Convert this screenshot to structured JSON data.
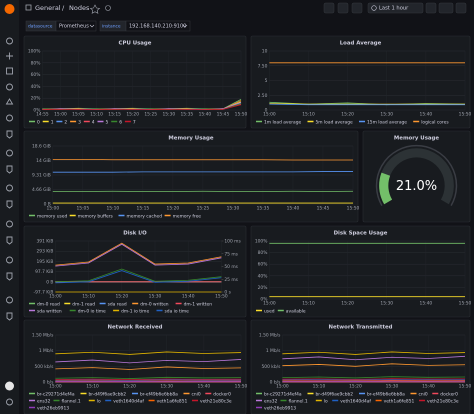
{
  "header": {
    "parent": "General",
    "separator": "/",
    "title": "Nodes",
    "time_range": "Last 1 hour"
  },
  "variables": [
    {
      "label": "datasource",
      "value": "Prometheus"
    },
    {
      "label": "instance",
      "value": "192.168.140.210:9100"
    }
  ],
  "chart_data": [
    {
      "type": "line",
      "title": "CPU Usage",
      "x": [
        "14:55",
        "15:00",
        "15:05",
        "15:10",
        "15:15",
        "15:20",
        "15:25",
        "15:30",
        "15:35",
        "15:40",
        "15:45",
        "15:50"
      ],
      "ylim": [
        0,
        100
      ],
      "yticks": [
        {
          "value": 0,
          "label": "0%"
        },
        {
          "value": 20,
          "label": "20%"
        },
        {
          "value": 40,
          "label": "40%"
        },
        {
          "value": 60,
          "label": "60%"
        },
        {
          "value": 80,
          "label": "80%"
        },
        {
          "value": 100,
          "label": "100%"
        }
      ],
      "series": [
        {
          "name": "0",
          "color": "#73bf69",
          "values": [
            2,
            2,
            3,
            2,
            2,
            3,
            2,
            2,
            3,
            2,
            2,
            18
          ]
        },
        {
          "name": "1",
          "color": "#fade2a",
          "values": [
            1,
            2,
            2,
            1,
            2,
            2,
            1,
            2,
            2,
            1,
            2,
            14
          ]
        },
        {
          "name": "2",
          "color": "#5794f2",
          "values": [
            2,
            1,
            2,
            2,
            1,
            2,
            2,
            1,
            2,
            2,
            1,
            12
          ]
        },
        {
          "name": "3",
          "color": "#ff9830",
          "values": [
            1,
            1,
            2,
            1,
            1,
            2,
            1,
            1,
            2,
            1,
            1,
            16
          ]
        },
        {
          "name": "4",
          "color": "#f2495c",
          "values": [
            2,
            2,
            1,
            2,
            2,
            1,
            2,
            2,
            1,
            2,
            2,
            10
          ]
        },
        {
          "name": "5",
          "color": "#b877d9",
          "values": [
            1,
            2,
            1,
            1,
            2,
            1,
            1,
            2,
            1,
            1,
            2,
            13
          ]
        },
        {
          "name": "6",
          "color": "#37872d",
          "values": [
            2,
            1,
            1,
            2,
            1,
            1,
            2,
            1,
            1,
            2,
            1,
            11
          ]
        },
        {
          "name": "7",
          "color": "#c4162a",
          "values": [
            1,
            1,
            1,
            1,
            1,
            1,
            1,
            1,
            1,
            1,
            1,
            9
          ]
        }
      ]
    },
    {
      "type": "line",
      "title": "Load Average",
      "x": [
        "15:00",
        "15:10",
        "15:20",
        "15:30",
        "15:40",
        "15:50"
      ],
      "ylim": [
        0,
        10
      ],
      "yticks": [
        0,
        {
          "value": 2.5,
          "label": "2.50"
        },
        5,
        {
          "value": 7.5,
          "label": "7.50"
        },
        10
      ],
      "series": [
        {
          "name": "1m load average",
          "color": "#73bf69",
          "values": [
            1.3,
            1.0,
            1.2,
            0.9,
            1.1,
            1.0
          ]
        },
        {
          "name": "5m load average",
          "color": "#fade2a",
          "values": [
            1.1,
            1.0,
            1.0,
            1.0,
            1.0,
            1.0
          ]
        },
        {
          "name": "15m load average",
          "color": "#5794f2",
          "values": [
            1.0,
            0.9,
            0.9,
            0.9,
            0.9,
            0.9
          ]
        },
        {
          "name": "logical cores",
          "color": "#ff9830",
          "values": [
            8,
            8,
            8,
            8,
            8,
            8
          ]
        }
      ]
    },
    {
      "type": "line",
      "title": "Memory Usage",
      "x": [
        "15:00",
        "15:05",
        "15:10",
        "15:15",
        "15:20",
        "15:25",
        "15:30",
        "15:35",
        "15:40",
        "15:45",
        "15:50"
      ],
      "ylim": [
        0,
        18.6
      ],
      "yticks": [
        {
          "value": 0,
          "label": "0 B"
        },
        {
          "value": 4.66,
          "label": "4.66 GiB"
        },
        {
          "value": 9.31,
          "label": "9.31 GiB"
        },
        {
          "value": 14,
          "label": "14 GiB"
        },
        {
          "value": 18.6,
          "label": "18.6 GiB"
        }
      ],
      "series": [
        {
          "name": "memory used",
          "color": "#73bf69",
          "values": [
            4.0,
            4.0,
            4.1,
            4.0,
            4.0,
            4.1,
            4.0,
            4.0,
            4.1,
            4.0,
            4.1
          ]
        },
        {
          "name": "memory buffers",
          "color": "#fade2a",
          "values": [
            0.3,
            0.3,
            0.3,
            0.3,
            0.3,
            0.3,
            0.3,
            0.3,
            0.3,
            0.3,
            0.3
          ]
        },
        {
          "name": "memory cached",
          "color": "#5794f2",
          "values": [
            10.2,
            10.2,
            10.2,
            10.3,
            10.3,
            10.3,
            10.3,
            10.3,
            10.3,
            10.4,
            10.4
          ]
        },
        {
          "name": "memory free",
          "color": "#ff9830",
          "values": [
            14.3,
            14.3,
            14.2,
            14.2,
            14.2,
            14.2,
            14.2,
            14.2,
            14.1,
            14.1,
            14.1
          ]
        }
      ]
    },
    {
      "type": "gauge",
      "title": "Memory Usage",
      "ylim": [
        0,
        100
      ],
      "color": "#73bf69",
      "values": [
        21.0
      ],
      "value_labels": [
        "21.0%"
      ]
    },
    {
      "type": "line",
      "title": "Disk I/O",
      "x": [
        "15:00",
        "15:10",
        "15:20",
        "15:30",
        "15:40",
        "15:50"
      ],
      "ylim": [
        -97.7,
        391
      ],
      "yticks": [
        {
          "value": -97.7,
          "label": "-97.7 KiB"
        },
        {
          "value": 0,
          "label": "0 B"
        },
        {
          "value": 97.7,
          "label": "97.7 KiB"
        },
        {
          "value": 195,
          "label": "195 KiB"
        },
        {
          "value": 293,
          "label": "293 KiB"
        },
        {
          "value": 391,
          "label": "391 KiB"
        }
      ],
      "y2lim": [
        0,
        100
      ],
      "y2ticks": [
        {
          "value": 0,
          "label": "0 s"
        },
        {
          "value": 25,
          "label": "25 ms"
        },
        {
          "value": 50,
          "label": "50 ms"
        },
        {
          "value": 75,
          "label": "75 ms"
        },
        {
          "value": 100,
          "label": "100 ms"
        }
      ],
      "series": [
        {
          "name": "dm-0 read",
          "color": "#73bf69",
          "values": [
            0,
            0,
            0,
            0,
            0,
            0
          ]
        },
        {
          "name": "dm-1 read",
          "color": "#fade2a",
          "values": [
            0,
            0,
            0,
            0,
            0,
            0
          ]
        },
        {
          "name": "sda read",
          "color": "#5794f2",
          "values": [
            0,
            0,
            0,
            0,
            0,
            0
          ]
        },
        {
          "name": "dm-0 written",
          "color": "#ff9830",
          "values": [
            160,
            190,
            370,
            170,
            180,
            240
          ]
        },
        {
          "name": "dm-1 written",
          "color": "#f2495c",
          "values": [
            0,
            0,
            0,
            0,
            0,
            0
          ]
        },
        {
          "name": "sda written",
          "color": "#b877d9",
          "values": [
            150,
            180,
            360,
            160,
            170,
            230
          ]
        },
        {
          "name": "dm-0 io time",
          "color": "#37872d",
          "values": [
            20,
            22,
            45,
            21,
            23,
            30
          ],
          "axis": "y2"
        },
        {
          "name": "dm-1 io time",
          "color": "#e0b400",
          "values": [
            0,
            0,
            0,
            0,
            0,
            0
          ],
          "axis": "y2"
        },
        {
          "name": "sda io time",
          "color": "#1f60c4",
          "values": [
            18,
            20,
            42,
            19,
            21,
            28
          ],
          "axis": "y2"
        }
      ]
    },
    {
      "type": "line",
      "title": "Disk Space Usage",
      "x": [
        "15:00",
        "15:10",
        "15:20",
        "15:30",
        "15:40",
        "15:50"
      ],
      "ylim": [
        0,
        100
      ],
      "yticks": [
        {
          "value": 0,
          "label": "0%"
        },
        {
          "value": 20,
          "label": "20%"
        },
        {
          "value": 40,
          "label": "40%"
        },
        {
          "value": 60,
          "label": "60%"
        },
        {
          "value": 80,
          "label": "80%"
        },
        {
          "value": 100,
          "label": "100%"
        }
      ],
      "series": [
        {
          "name": "used",
          "color": "#fade2a",
          "values": [
            4,
            4,
            4,
            4,
            4,
            4
          ]
        },
        {
          "name": "available",
          "color": "#73bf69",
          "values": [
            96,
            96,
            96,
            96,
            96,
            96
          ]
        }
      ]
    },
    {
      "type": "line",
      "title": "Network Received",
      "x": [
        "15:00",
        "15:10",
        "15:20",
        "15:30",
        "15:40",
        "15:50"
      ],
      "ylim": [
        0,
        1500
      ],
      "yticks": [
        {
          "value": 0,
          "label": "0 b/s"
        },
        {
          "value": 500,
          "label": "500 kb/s"
        },
        {
          "value": 1000,
          "label": "1 Mb/s"
        },
        {
          "value": 1500,
          "label": "1.50 Mb/s"
        }
      ],
      "series": [
        {
          "name": "br-c29271d4ef4a",
          "color": "#73bf69",
          "values": [
            0,
            0,
            0,
            0,
            0,
            0
          ]
        },
        {
          "name": "br-d49f6ae9cbb2",
          "color": "#fade2a",
          "values": [
            0,
            0,
            0,
            0,
            0,
            0
          ]
        },
        {
          "name": "br-ef49b6e6bb8a",
          "color": "#5794f2",
          "values": [
            0,
            0,
            0,
            0,
            0,
            0
          ]
        },
        {
          "name": "cni0",
          "color": "#ff9830",
          "values": [
            420,
            460,
            400,
            480,
            430,
            450
          ]
        },
        {
          "name": "docker0",
          "color": "#f2495c",
          "values": [
            0,
            0,
            0,
            0,
            0,
            0
          ]
        },
        {
          "name": "ens32",
          "color": "#b877d9",
          "values": [
            640,
            700,
            610,
            690,
            650,
            720
          ]
        },
        {
          "name": "flannel.1",
          "color": "#37872d",
          "values": [
            120,
            140,
            110,
            150,
            130,
            140
          ]
        },
        {
          "name": "lo",
          "color": "#e0b400",
          "values": [
            900,
            950,
            880,
            960,
            910,
            940
          ]
        },
        {
          "name": "veth1640d4af",
          "color": "#1f60c4",
          "values": [
            60,
            70,
            55,
            75,
            65,
            70
          ]
        },
        {
          "name": "veth1a6fe851",
          "color": "#fa6400",
          "values": [
            30,
            35,
            28,
            40,
            32,
            36
          ]
        },
        {
          "name": "veth21e80c3e",
          "color": "#c4162a",
          "values": [
            80,
            90,
            75,
            95,
            85,
            90
          ]
        },
        {
          "name": "veth26eb9913",
          "color": "#8f3bb8",
          "values": [
            20,
            25,
            18,
            28,
            22,
            26
          ]
        }
      ]
    },
    {
      "type": "line",
      "title": "Network Transmitted",
      "x": [
        "15:00",
        "15:10",
        "15:20",
        "15:30",
        "15:40",
        "15:50"
      ],
      "ylim": [
        0,
        1500
      ],
      "yticks": [
        {
          "value": 0,
          "label": "0 b/s"
        },
        {
          "value": 500,
          "label": "500 kb/s"
        },
        {
          "value": 1000,
          "label": "1 Mb/s"
        },
        {
          "value": 1500,
          "label": "1.50 Mb/s"
        }
      ],
      "series": [
        {
          "name": "br-c29271d4ef4a",
          "color": "#73bf69",
          "values": [
            0,
            0,
            0,
            0,
            0,
            0
          ]
        },
        {
          "name": "br-d49f6ae9cbb2",
          "color": "#fade2a",
          "values": [
            0,
            0,
            0,
            0,
            0,
            0
          ]
        },
        {
          "name": "br-ef49b6e6bb8a",
          "color": "#5794f2",
          "values": [
            0,
            0,
            0,
            0,
            0,
            0
          ]
        },
        {
          "name": "cni0",
          "color": "#ff9830",
          "values": [
            520,
            560,
            500,
            580,
            530,
            550
          ]
        },
        {
          "name": "docker0",
          "color": "#f2495c",
          "values": [
            0,
            0,
            0,
            0,
            0,
            0
          ]
        },
        {
          "name": "ens32",
          "color": "#b877d9",
          "values": [
            740,
            800,
            710,
            790,
            750,
            820
          ]
        },
        {
          "name": "flannel.1",
          "color": "#37872d",
          "values": [
            140,
            160,
            130,
            170,
            150,
            160
          ]
        },
        {
          "name": "lo",
          "color": "#e0b400",
          "values": [
            900,
            950,
            880,
            960,
            910,
            940
          ]
        },
        {
          "name": "veth1640d4af",
          "color": "#1f60c4",
          "values": [
            70,
            80,
            65,
            85,
            75,
            80
          ]
        },
        {
          "name": "veth1a6fe851",
          "color": "#fa6400",
          "values": [
            40,
            45,
            38,
            50,
            42,
            46
          ]
        },
        {
          "name": "veth21e80c3e",
          "color": "#c4162a",
          "values": [
            90,
            100,
            85,
            105,
            95,
            100
          ]
        },
        {
          "name": "veth26eb9913",
          "color": "#8f3bb8",
          "values": [
            25,
            30,
            22,
            33,
            27,
            31
          ]
        }
      ]
    }
  ]
}
